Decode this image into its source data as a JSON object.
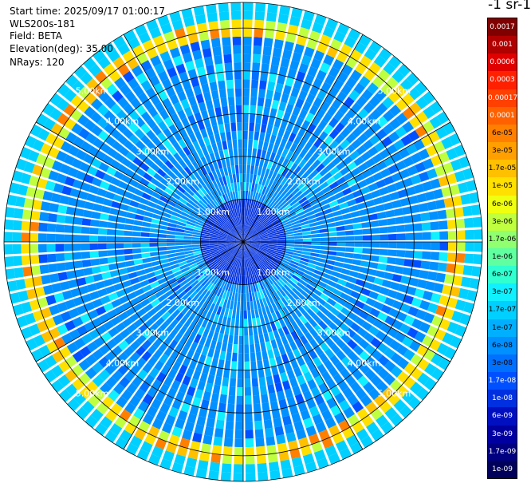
{
  "header": {
    "start_time": "Start time: 2025/09/17 01:00:17",
    "instrument": "WLS200s-181",
    "field": "Field: BETA",
    "elevation": "Elevation(deg): 35.00",
    "nrays": "NRays: 120"
  },
  "colorbar": {
    "unit_label": "-1 sr-1",
    "levels": [
      {
        "label": "0.0017",
        "color": "#800000"
      },
      {
        "label": "0.001",
        "color": "#b00000"
      },
      {
        "label": "0.0006",
        "color": "#e00000"
      },
      {
        "label": "0.0003",
        "color": "#ff2000"
      },
      {
        "label": "0.00017",
        "color": "#ff4000"
      },
      {
        "label": "0.0001",
        "color": "#ff6000"
      },
      {
        "label": "6e-05",
        "color": "#ff8000"
      },
      {
        "label": "3e-05",
        "color": "#ffa000"
      },
      {
        "label": "1.7e-05",
        "color": "#ffc000"
      },
      {
        "label": "1e-05",
        "color": "#ffe000"
      },
      {
        "label": "6e-06",
        "color": "#f0ff10"
      },
      {
        "label": "3e-06",
        "color": "#c0ff40"
      },
      {
        "label": "1.7e-06",
        "color": "#90ff70"
      },
      {
        "label": "1e-06",
        "color": "#60ffa0"
      },
      {
        "label": "6e-07",
        "color": "#30ffd0"
      },
      {
        "label": "3e-07",
        "color": "#10f0ff"
      },
      {
        "label": "1.7e-07",
        "color": "#00d0ff"
      },
      {
        "label": "1e-07",
        "color": "#00b0ff"
      },
      {
        "label": "6e-08",
        "color": "#0090ff"
      },
      {
        "label": "3e-08",
        "color": "#0070ff"
      },
      {
        "label": "1.7e-08",
        "color": "#0050ff"
      },
      {
        "label": "1e-08",
        "color": "#0030e0"
      },
      {
        "label": "6e-09",
        "color": "#0010c0"
      },
      {
        "label": "3e-09",
        "color": "#0000a0"
      },
      {
        "label": "1.7e-09",
        "color": "#000080"
      },
      {
        "label": "1e-09",
        "color": "#00005a"
      }
    ]
  },
  "chart_data": {
    "type": "heatmap",
    "projection": "polar PPI",
    "range_rings": [
      {
        "label": "1.00km",
        "range_km": 1.0
      },
      {
        "label": "2.00km",
        "range_km": 2.0
      },
      {
        "label": "3.00km",
        "range_km": 3.0
      },
      {
        "label": "4.00km",
        "range_km": 4.0
      },
      {
        "label": "5.00km",
        "range_km": 5.0
      }
    ],
    "max_range_km": 5.6,
    "n_rays": 120,
    "azimuth_lines_deg": [
      0,
      30,
      60,
      90,
      120,
      150,
      180,
      210,
      240,
      270,
      300,
      330
    ],
    "field": "BETA",
    "description_bands": [
      {
        "range_km": [
          0,
          1.0
        ],
        "level": "1e-08"
      },
      {
        "range_km": [
          1.0,
          4.8
        ],
        "level": "6e-08"
      },
      {
        "range_km": [
          4.8,
          5.3
        ],
        "level": "1e-05"
      },
      {
        "range_km": [
          5.3,
          5.6
        ],
        "level": "1.7e-07"
      }
    ]
  }
}
